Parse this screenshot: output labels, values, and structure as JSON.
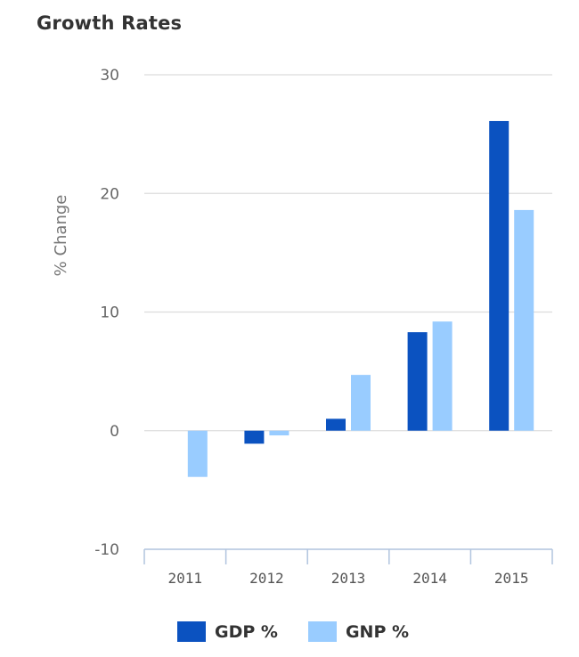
{
  "chart_data": {
    "type": "bar",
    "title": "Growth Rates",
    "xlabel": "",
    "ylabel": "% Change",
    "categories": [
      "2011",
      "2012",
      "2013",
      "2014",
      "2015"
    ],
    "series": [
      {
        "name": "GDP %",
        "color": "#0b52c0",
        "values": [
          0,
          -1.1,
          1.0,
          8.3,
          26.1
        ]
      },
      {
        "name": "GNP %",
        "color": "#99ccff",
        "values": [
          -3.9,
          -0.4,
          4.7,
          9.2,
          18.6
        ]
      }
    ],
    "ylim": [
      -10,
      30
    ],
    "yticks": [
      -10,
      0,
      10,
      20,
      30
    ],
    "grid": true,
    "legend_position": "bottom"
  }
}
